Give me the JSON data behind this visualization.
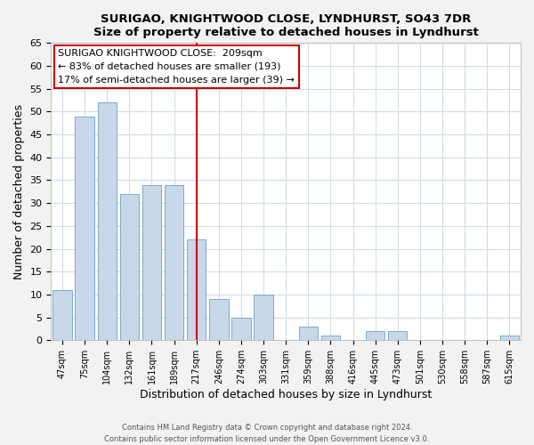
{
  "title1": "SURIGAO, KNIGHTWOOD CLOSE, LYNDHURST, SO43 7DR",
  "title2": "Size of property relative to detached houses in Lyndhurst",
  "xlabel": "Distribution of detached houses by size in Lyndhurst",
  "ylabel": "Number of detached properties",
  "bar_labels": [
    "47sqm",
    "75sqm",
    "104sqm",
    "132sqm",
    "161sqm",
    "189sqm",
    "217sqm",
    "246sqm",
    "274sqm",
    "303sqm",
    "331sqm",
    "359sqm",
    "388sqm",
    "416sqm",
    "445sqm",
    "473sqm",
    "501sqm",
    "530sqm",
    "558sqm",
    "587sqm",
    "615sqm"
  ],
  "bar_values": [
    11,
    49,
    52,
    32,
    34,
    34,
    22,
    9,
    5,
    10,
    0,
    3,
    1,
    0,
    2,
    2,
    0,
    0,
    0,
    0,
    1
  ],
  "bar_color": "#c8d8ea",
  "bar_edge_color": "#7aaac8",
  "vline_color": "#cc0000",
  "ylim": [
    0,
    65
  ],
  "yticks": [
    0,
    5,
    10,
    15,
    20,
    25,
    30,
    35,
    40,
    45,
    50,
    55,
    60,
    65
  ],
  "annotation_title": "SURIGAO KNIGHTWOOD CLOSE:  209sqm",
  "annotation_line1": "← 83% of detached houses are smaller (193)",
  "annotation_line2": "17% of semi-detached houses are larger (39) →",
  "footer1": "Contains HM Land Registry data © Crown copyright and database right 2024.",
  "footer2": "Contains public sector information licensed under the Open Government Licence v3.0.",
  "background_color": "#f2f2f2",
  "plot_bg_color": "#ffffff",
  "grid_color": "#d0dce8"
}
